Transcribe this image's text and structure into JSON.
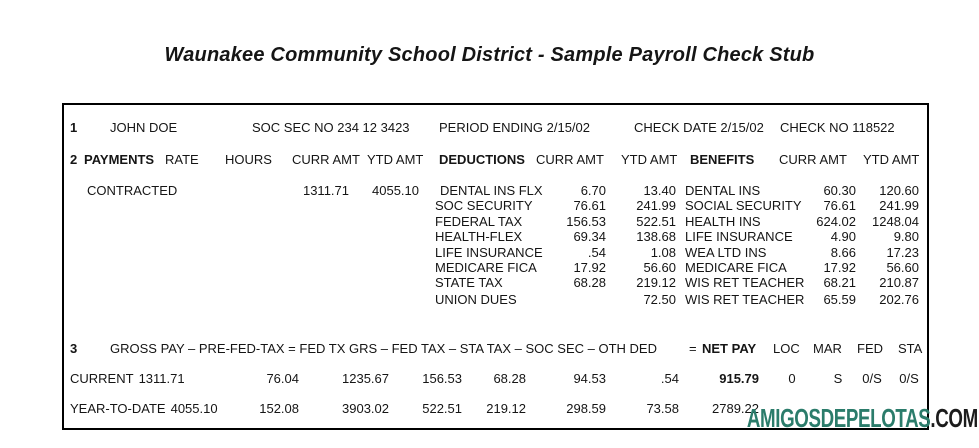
{
  "title": "Waunakee Community School District - Sample Payroll Check Stub",
  "employee": {
    "section_no": "1",
    "name": "JOHN DOE",
    "soc_sec": "SOC SEC NO 234 12 3423",
    "period_ending": "PERIOD ENDING 2/15/02",
    "check_date": "CHECK DATE 2/15/02",
    "check_no": "CHECK NO 118522"
  },
  "detail": {
    "section_no": "2",
    "headers": {
      "payments": "PAYMENTS",
      "rate": "RATE",
      "hours": "HOURS",
      "curr_amt": "CURR AMT",
      "ytd_amt": "YTD AMT",
      "deductions": "DEDUCTIONS",
      "ded_curr_amt": "CURR AMT",
      "ded_ytd_amt": "YTD AMT",
      "benefits": "BENEFITS",
      "ben_curr_amt": "CURR AMT",
      "ben_ytd_amt": "YTD AMT"
    },
    "rows": [
      {
        "pay": "CONTRACTED",
        "pay_curr": "1311.71",
        "pay_ytd": "4055.10",
        "ded": "DENTAL INS FLX",
        "ded_curr": "6.70",
        "ded_ytd": "13.40",
        "ben": "DENTAL INS",
        "ben_curr": "60.30",
        "ben_ytd": "120.60"
      },
      {
        "pay": "",
        "pay_curr": "",
        "pay_ytd": "",
        "ded": "SOC SECURITY",
        "ded_curr": "76.61",
        "ded_ytd": "241.99",
        "ben": "SOCIAL SECURITY",
        "ben_curr": "76.61",
        "ben_ytd": "241.99"
      },
      {
        "pay": "",
        "pay_curr": "",
        "pay_ytd": "",
        "ded": "FEDERAL TAX",
        "ded_curr": "156.53",
        "ded_ytd": "522.51",
        "ben": "HEALTH INS",
        "ben_curr": "624.02",
        "ben_ytd": "1248.04"
      },
      {
        "pay": "",
        "pay_curr": "",
        "pay_ytd": "",
        "ded": "HEALTH-FLEX",
        "ded_curr": "69.34",
        "ded_ytd": "138.68",
        "ben": "LIFE INSURANCE",
        "ben_curr": "4.90",
        "ben_ytd": "9.80"
      },
      {
        "pay": "",
        "pay_curr": "",
        "pay_ytd": "",
        "ded": "LIFE INSURANCE",
        "ded_curr": ".54",
        "ded_ytd": "1.08",
        "ben": "WEA LTD INS",
        "ben_curr": "8.66",
        "ben_ytd": "17.23"
      },
      {
        "pay": "",
        "pay_curr": "",
        "pay_ytd": "",
        "ded": "MEDICARE FICA",
        "ded_curr": "17.92",
        "ded_ytd": "56.60",
        "ben": "MEDICARE FICA",
        "ben_curr": "17.92",
        "ben_ytd": "56.60"
      },
      {
        "pay": "",
        "pay_curr": "",
        "pay_ytd": "",
        "ded": "STATE TAX",
        "ded_curr": "68.28",
        "ded_ytd": "219.12",
        "ben": "WIS RET TEACHER",
        "ben_curr": "68.21",
        "ben_ytd": "210.87"
      },
      {
        "pay": "",
        "pay_curr": "",
        "pay_ytd": "",
        "ded": "UNION DUES",
        "ded_curr": "",
        "ded_ytd": "72.50",
        "ben": "WIS RET TEACHER",
        "ben_curr": "65.59",
        "ben_ytd": "202.76"
      }
    ]
  },
  "summary": {
    "section_no": "3",
    "formula": "GROSS PAY – PRE-FED-TAX = FED TX GRS – FED TAX – STA TAX – SOC SEC – OTH DED",
    "equals_sign": "=",
    "net_pay_label": "NET PAY",
    "col_loc": "LOC",
    "col_mar": "MAR",
    "col_fed": "FED",
    "col_sta": "STA",
    "rows": [
      {
        "label": "CURRENT",
        "gross": "1311.71",
        "pre_fed_tax": "76.04",
        "fed_tx_grs": "1235.67",
        "fed_tax": "156.53",
        "sta_tax": "68.28",
        "soc_sec": "94.53",
        "oth_ded": ".54",
        "net_pay": "915.79",
        "loc": "0",
        "mar": "S",
        "fed": "0/S",
        "sta": "0/S"
      },
      {
        "label": "YEAR-TO-DATE",
        "gross": "4055.10",
        "pre_fed_tax": "152.08",
        "fed_tx_grs": "3903.02",
        "fed_tax": "522.51",
        "sta_tax": "219.12",
        "soc_sec": "298.59",
        "oth_ded": "73.58",
        "net_pay": "2789.22",
        "loc": "",
        "mar": "",
        "fed": "",
        "sta": ""
      }
    ]
  },
  "watermark": {
    "brand": "AMIGOSDEPELOTAS",
    "suffix": ".COM",
    "brand_color": "#2b7c6b",
    "suffix_color": "#1c1c1c"
  }
}
